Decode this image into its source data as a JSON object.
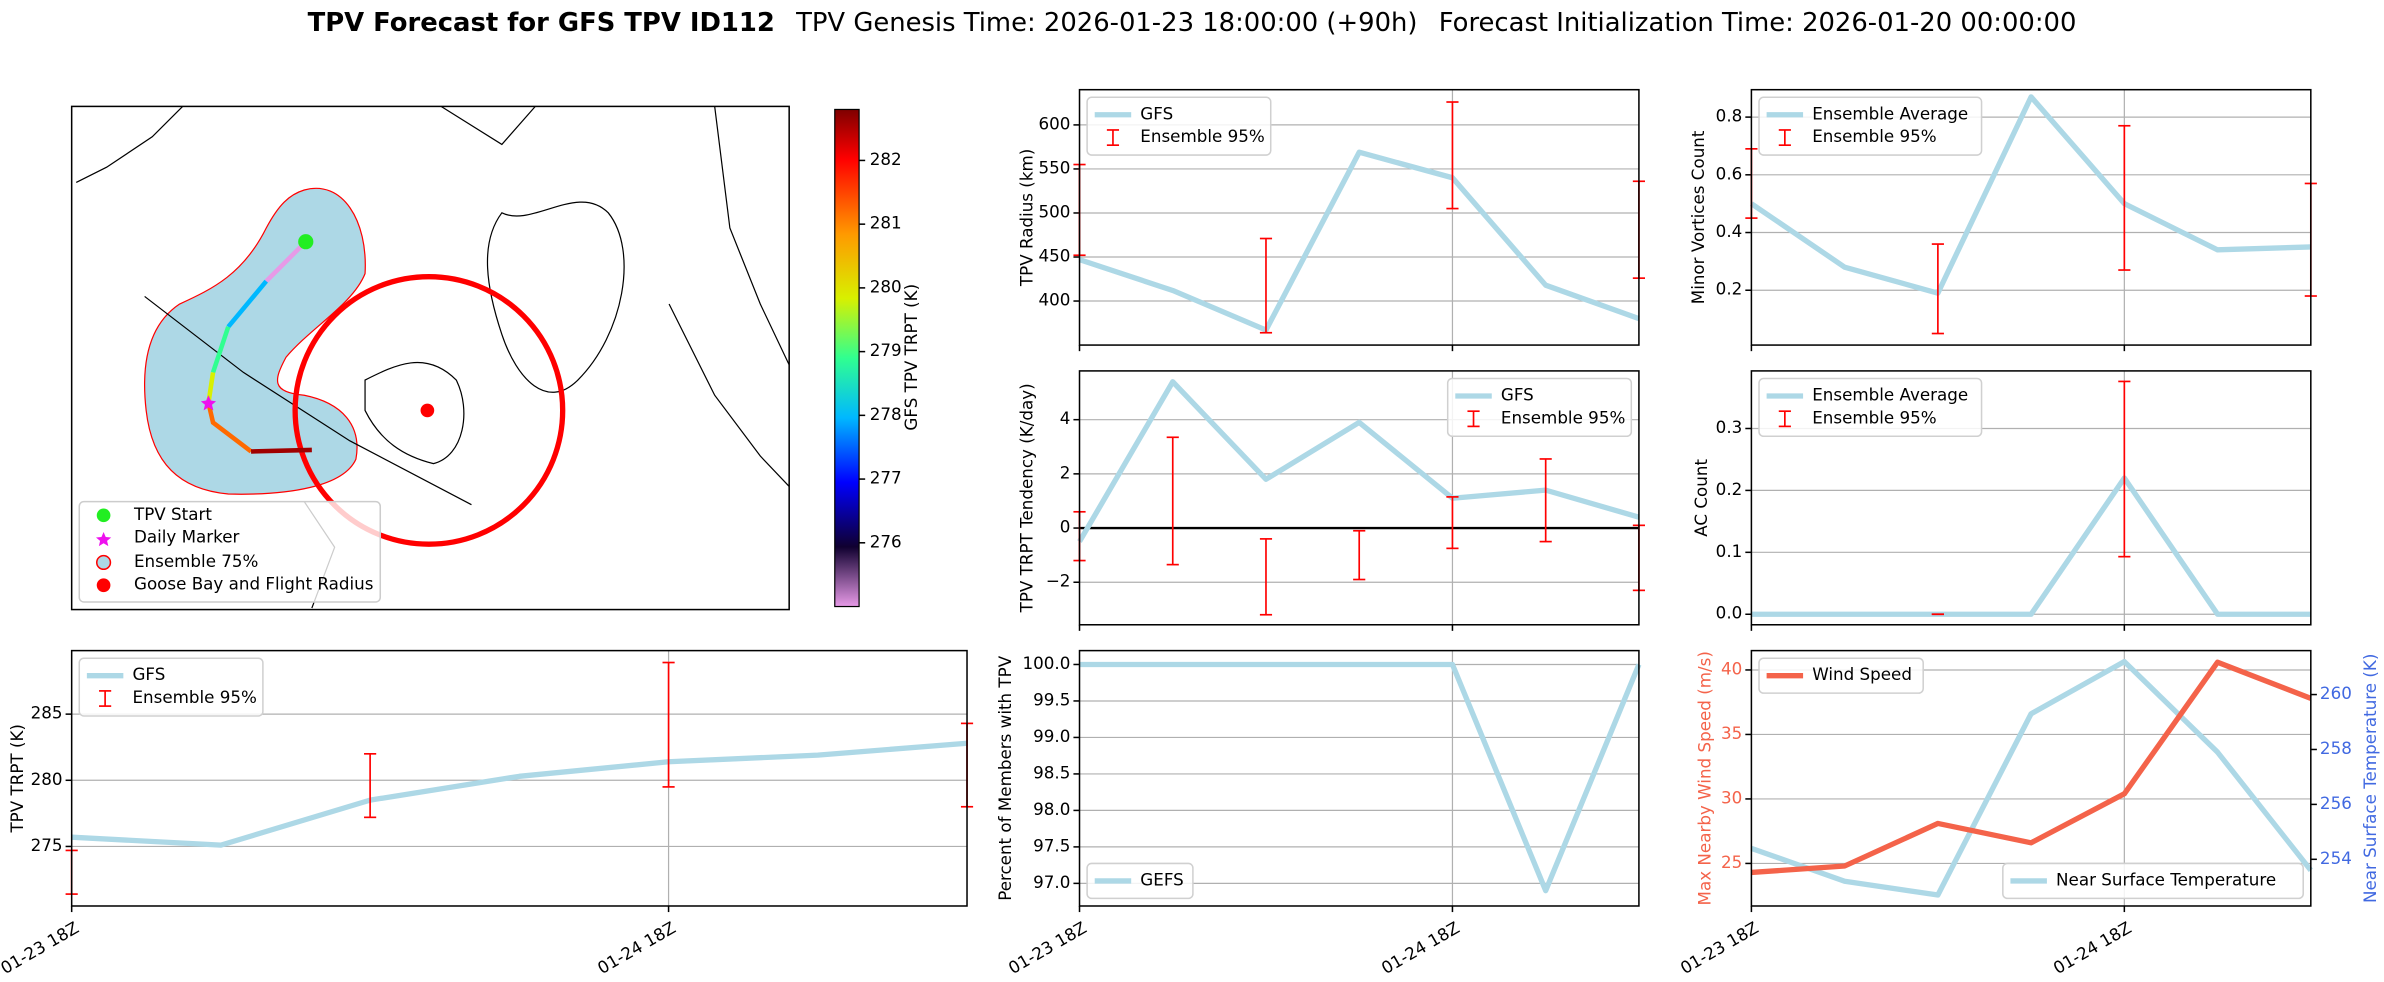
{
  "title": {
    "main": "TPV Forecast for GFS TPV ID112",
    "genesis": "TPV Genesis Time: 2026-01-23 18:00:00 (+90h)",
    "init": "Forecast Initialization Time: 2026-01-20 00:00:00"
  },
  "chart_data": [
    {
      "type": "map",
      "legend": [
        "TPV Start",
        "Daily Marker",
        "Ensemble 75%",
        "Goose Bay and Flight Radius"
      ],
      "colorbar": {
        "label": "GFS TPV TRPT (K)",
        "clim": [
          275.0,
          282.8
        ],
        "cticks": [
          276,
          277,
          278,
          279,
          280,
          281,
          282
        ]
      }
    },
    {
      "type": "line",
      "ylabel": "TPV Radius (km)",
      "ylim": [
        350,
        640
      ],
      "yticks": [
        400,
        450,
        500,
        550,
        600
      ],
      "grid": true,
      "legend": "upper left",
      "series": [
        {
          "name": "GFS",
          "color": "#add8e6",
          "values": [
            447,
            412,
            367,
            569,
            540,
            418,
            380
          ]
        },
        {
          "name": "Ensemble 95%",
          "type": "errorbar",
          "color": "#ff0000",
          "low": [
            452,
            null,
            364,
            null,
            505,
            null,
            426
          ],
          "high": [
            555,
            null,
            471,
            null,
            626,
            null,
            536
          ]
        }
      ]
    },
    {
      "type": "line",
      "ylabel": "Minor Vortices Count",
      "ylim": [
        0.01,
        0.895
      ],
      "yticks": [
        0.2,
        0.4,
        0.6,
        0.8
      ],
      "grid": true,
      "legend": "upper left",
      "series": [
        {
          "name": "Ensemble Average",
          "color": "#add8e6",
          "values": [
            0.5,
            0.28,
            0.19,
            0.87,
            0.5,
            0.34,
            0.35
          ]
        },
        {
          "name": "Ensemble 95%",
          "type": "errorbar",
          "color": "#ff0000",
          "low": [
            0.45,
            null,
            0.05,
            null,
            0.27,
            null,
            0.18
          ],
          "high": [
            0.69,
            null,
            0.36,
            null,
            0.77,
            null,
            0.57
          ]
        }
      ]
    },
    {
      "type": "line",
      "ylabel": "TPV TRPT Tendency (K/day)",
      "ylim": [
        -3.57,
        5.8
      ],
      "yticks": [
        {
          "value": -2,
          "label": "−2"
        },
        0,
        2,
        4
      ],
      "grid": true,
      "hline": 0,
      "legend": "upper right",
      "series": [
        {
          "name": "GFS",
          "color": "#add8e6",
          "values": [
            -0.5,
            5.4,
            1.8,
            3.9,
            1.1,
            1.4,
            0.4
          ]
        },
        {
          "name": "Ensemble 95%",
          "type": "errorbar",
          "color": "#ff0000",
          "low": [
            -1.2,
            -1.35,
            -3.2,
            -1.9,
            -0.75,
            -0.5,
            -2.3
          ],
          "high": [
            0.6,
            3.35,
            -0.4,
            -0.1,
            1.15,
            2.55,
            0.1
          ]
        }
      ]
    },
    {
      "type": "line",
      "ylabel": "AC Count",
      "ylim": [
        -0.017,
        0.393
      ],
      "yticks": [
        {
          "value": 0,
          "label": "0.0"
        },
        0.1,
        0.2,
        0.3
      ],
      "grid": true,
      "legend": "upper left",
      "series": [
        {
          "name": "Ensemble Average",
          "color": "#add8e6",
          "values": [
            0,
            0,
            0,
            0,
            0.22,
            0,
            0
          ]
        },
        {
          "name": "Ensemble 95%",
          "type": "errorbar",
          "color": "#ff0000",
          "low": [
            null,
            null,
            0,
            null,
            0.093,
            null,
            null
          ],
          "high": [
            null,
            null,
            0,
            null,
            0.376,
            null,
            null
          ]
        }
      ]
    },
    {
      "type": "line",
      "ylabel": "TPV TRPT (K)",
      "ylim": [
        270.5,
        289.8
      ],
      "yticks": [
        275,
        280,
        285
      ],
      "grid": true,
      "legend": "upper left",
      "categories": [
        "01-23 18Z",
        null,
        null,
        null,
        "01-24 18Z",
        null,
        null
      ],
      "series": [
        {
          "name": "GFS",
          "color": "#add8e6",
          "values": [
            275.7,
            275.1,
            278.5,
            280.3,
            281.4,
            281.9,
            282.8
          ]
        },
        {
          "name": "Ensemble 95%",
          "type": "errorbar",
          "color": "#ff0000",
          "low": [
            271.4,
            null,
            277.2,
            null,
            279.5,
            null,
            278.0
          ],
          "high": [
            274.7,
            null,
            282.0,
            null,
            288.9,
            null,
            284.3
          ]
        }
      ]
    },
    {
      "type": "line",
      "ylabel": "Percent of Members with TPV",
      "ylim": [
        96.69,
        100.19
      ],
      "yticks": [
        {
          "value": 97,
          "label": "97.0"
        },
        {
          "value": 97.5,
          "label": "97.5"
        },
        {
          "value": 98,
          "label": "98.0"
        },
        {
          "value": 98.5,
          "label": "98.5"
        },
        {
          "value": 99,
          "label": "99.0"
        },
        {
          "value": 99.5,
          "label": "99.5"
        },
        {
          "value": 100,
          "label": "100.0"
        }
      ],
      "grid": true,
      "legend": "lower left",
      "categories": [
        "01-23 18Z",
        null,
        null,
        null,
        "01-24 18Z",
        null,
        null
      ],
      "series": [
        {
          "name": "GEFS",
          "color": "#add8e6",
          "values": [
            100,
            100,
            100,
            100,
            100,
            96.9,
            100
          ]
        }
      ]
    },
    {
      "type": "line",
      "ylabel": "Max Nearby Wind Speed (m/s)",
      "ycolor": "#f4634a",
      "ylim": [
        21.7,
        41.5
      ],
      "yticks": [
        25,
        30,
        35,
        40
      ],
      "y2label": "Near Surface Temperature (K)",
      "y2color": "#4169e1",
      "y2lim": [
        252.3,
        261.6
      ],
      "y2ticks": [
        254,
        256,
        258,
        260
      ],
      "grid": true,
      "categories": [
        "01-23 18Z",
        null,
        null,
        null,
        "01-24 18Z",
        null,
        null
      ],
      "series": [
        {
          "name": "Wind Speed",
          "color": "#f4634a",
          "legend": "upper left",
          "values": [
            24.3,
            24.8,
            28.1,
            26.6,
            30.4,
            40.6,
            37.8
          ]
        },
        {
          "name": "Near Surface Temperature",
          "color": "#add8e6",
          "axis": "y2",
          "legend": "lower right",
          "values": [
            254.4,
            253.2,
            252.7,
            259.3,
            261.2,
            257.9,
            253.6
          ]
        }
      ]
    }
  ]
}
